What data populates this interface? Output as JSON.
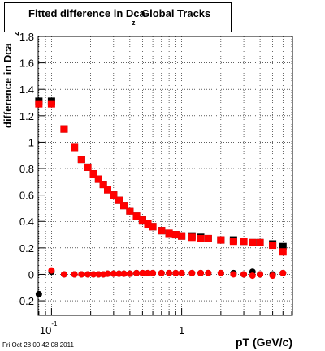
{
  "chart_data": {
    "type": "scatter",
    "title": "Fitted difference in Dca",
    "title_subscript": "z",
    "subtitle": "Global Tracks",
    "y_label": "difference in Dca",
    "y_label_subscript": "z",
    "x_label": "pT (GeV/c)",
    "footer": "Fri Oct 28 00:42:08 2011",
    "log_x": true,
    "grid": true,
    "xlim": [
      0.079,
      7.1
    ],
    "xticks": [
      {
        "value": 0.1,
        "label": "10",
        "exponent": "-1"
      },
      1
    ],
    "xminor": [
      0.08,
      0.09,
      0.2,
      0.3,
      0.4,
      0.5,
      0.6,
      0.7,
      0.8,
      0.9,
      2,
      3,
      4,
      5,
      6,
      7
    ],
    "ylim": [
      -0.31,
      1.8
    ],
    "yticks": [
      -0.2,
      0,
      0.2,
      0.4,
      0.6,
      0.8,
      1,
      1.2,
      1.4,
      1.6,
      1.8
    ],
    "x": [
      0.08,
      0.1,
      0.125,
      0.15,
      0.17,
      0.19,
      0.21,
      0.23,
      0.25,
      0.27,
      0.3,
      0.33,
      0.36,
      0.4,
      0.45,
      0.5,
      0.55,
      0.6,
      0.7,
      0.8,
      0.9,
      1.0,
      1.2,
      1.4,
      1.6,
      2.0,
      2.5,
      3.0,
      3.5,
      4.0,
      5.0,
      6.0
    ],
    "series": [
      {
        "color": "#000000",
        "marker": "circle",
        "values": [
          -0.15,
          0.02,
          0.0,
          0.0,
          0.0,
          0.0,
          0.0,
          0.0,
          0.0,
          0.005,
          0.005,
          0.005,
          0.005,
          0.005,
          0.01,
          0.01,
          0.01,
          0.01,
          0.01,
          0.01,
          0.01,
          0.01,
          0.01,
          0.01,
          0.01,
          0.01,
          0.01,
          0.0,
          0.02,
          0.0,
          0.0,
          0.01
        ]
      },
      {
        "color": "#000000",
        "marker": "square",
        "values": [
          1.31,
          1.31,
          1.1,
          0.96,
          0.87,
          0.81,
          0.76,
          0.72,
          0.68,
          0.64,
          0.6,
          0.56,
          0.52,
          0.48,
          0.44,
          0.41,
          0.38,
          0.36,
          0.33,
          0.31,
          0.3,
          0.29,
          0.29,
          0.28,
          0.27,
          0.26,
          0.26,
          0.25,
          0.24,
          0.24,
          0.23,
          0.21
        ]
      },
      {
        "color": "#ff0000",
        "marker": "circle",
        "values": [
          null,
          0.03,
          0.0,
          0.0,
          0.0,
          0.0,
          0.0,
          0.0,
          0.0,
          0.005,
          0.005,
          0.005,
          0.005,
          0.005,
          0.01,
          0.01,
          0.01,
          0.01,
          0.01,
          0.01,
          0.01,
          0.01,
          0.01,
          0.01,
          0.01,
          0.01,
          0.0,
          0.0,
          -0.01,
          0.0,
          -0.01,
          0.01
        ]
      },
      {
        "color": "#ff0000",
        "marker": "square",
        "values": [
          1.29,
          1.29,
          1.1,
          0.96,
          0.87,
          0.81,
          0.76,
          0.72,
          0.68,
          0.64,
          0.6,
          0.56,
          0.52,
          0.48,
          0.44,
          0.41,
          0.38,
          0.36,
          0.33,
          0.31,
          0.3,
          0.29,
          0.28,
          0.27,
          0.27,
          0.26,
          0.25,
          0.25,
          0.24,
          0.24,
          0.22,
          0.17
        ]
      }
    ]
  }
}
